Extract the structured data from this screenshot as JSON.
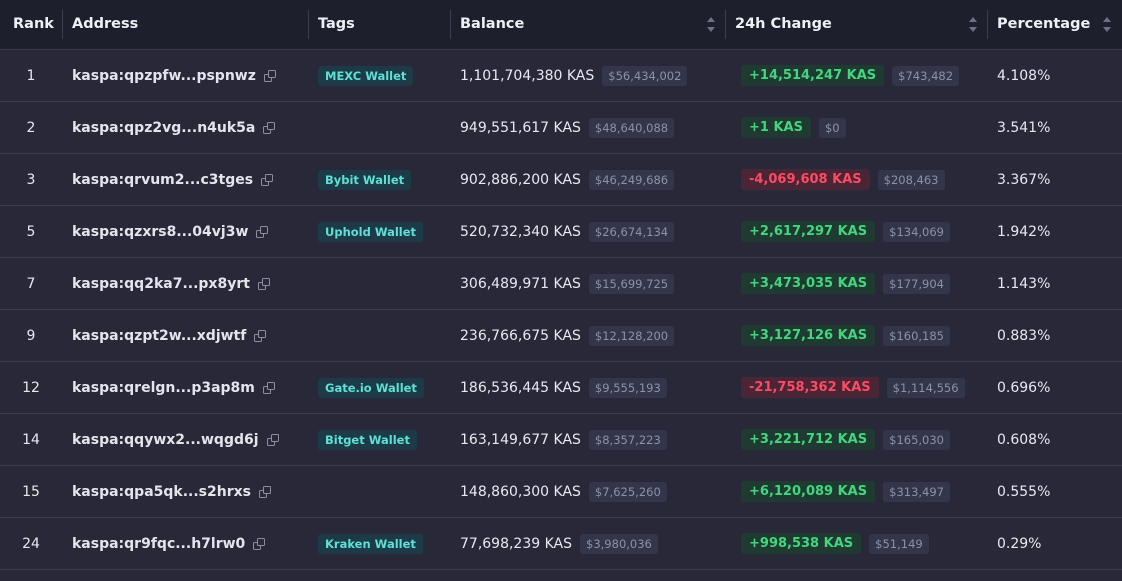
{
  "headers": {
    "rank": "Rank",
    "address": "Address",
    "tags": "Tags",
    "balance": "Balance",
    "change": "24h Change",
    "percentage": "Percentage"
  },
  "rows": [
    {
      "rank": "1",
      "address": "kaspa:qpzpfw...pspnwz",
      "tag": "MEXC Wallet",
      "balance": "1,101,704,380 KAS",
      "balance_usd": "$56,434,002",
      "change": "+14,514,247 KAS",
      "change_usd": "$743,482",
      "direction": "up",
      "percentage": "4.108%"
    },
    {
      "rank": "2",
      "address": "kaspa:qpz2vg...n4uk5a",
      "tag": "",
      "balance": "949,551,617 KAS",
      "balance_usd": "$48,640,088",
      "change": "+1 KAS",
      "change_usd": "$0",
      "direction": "up",
      "percentage": "3.541%"
    },
    {
      "rank": "3",
      "address": "kaspa:qrvum2...c3tges",
      "tag": "Bybit Wallet",
      "balance": "902,886,200 KAS",
      "balance_usd": "$46,249,686",
      "change": "-4,069,608 KAS",
      "change_usd": "$208,463",
      "direction": "down",
      "percentage": "3.367%"
    },
    {
      "rank": "5",
      "address": "kaspa:qzxrs8...04vj3w",
      "tag": "Uphold Wallet",
      "balance": "520,732,340 KAS",
      "balance_usd": "$26,674,134",
      "change": "+2,617,297 KAS",
      "change_usd": "$134,069",
      "direction": "up",
      "percentage": "1.942%"
    },
    {
      "rank": "7",
      "address": "kaspa:qq2ka7...px8yrt",
      "tag": "",
      "balance": "306,489,971 KAS",
      "balance_usd": "$15,699,725",
      "change": "+3,473,035 KAS",
      "change_usd": "$177,904",
      "direction": "up",
      "percentage": "1.143%"
    },
    {
      "rank": "9",
      "address": "kaspa:qzpt2w...xdjwtf",
      "tag": "",
      "balance": "236,766,675 KAS",
      "balance_usd": "$12,128,200",
      "change": "+3,127,126 KAS",
      "change_usd": "$160,185",
      "direction": "up",
      "percentage": "0.883%"
    },
    {
      "rank": "12",
      "address": "kaspa:qrelgn...p3ap8m",
      "tag": "Gate.io Wallet",
      "balance": "186,536,445 KAS",
      "balance_usd": "$9,555,193",
      "change": "-21,758,362 KAS",
      "change_usd": "$1,114,556",
      "direction": "down",
      "percentage": "0.696%"
    },
    {
      "rank": "14",
      "address": "kaspa:qqywx2...wqgd6j",
      "tag": "Bitget Wallet",
      "balance": "163,149,677 KAS",
      "balance_usd": "$8,357,223",
      "change": "+3,221,712 KAS",
      "change_usd": "$165,030",
      "direction": "up",
      "percentage": "0.608%"
    },
    {
      "rank": "15",
      "address": "kaspa:qpa5qk...s2hrxs",
      "tag": "",
      "balance": "148,860,300 KAS",
      "balance_usd": "$7,625,260",
      "change": "+6,120,089 KAS",
      "change_usd": "$313,497",
      "direction": "up",
      "percentage": "0.555%"
    },
    {
      "rank": "24",
      "address": "kaspa:qr9fqc...h7lrw0",
      "tag": "Kraken Wallet",
      "balance": "77,698,239 KAS",
      "balance_usd": "$3,980,036",
      "change": "+998,538 KAS",
      "change_usd": "$51,149",
      "direction": "up",
      "percentage": "0.29%"
    }
  ],
  "colors": {
    "positive": "#42d67e",
    "negative": "#ff4a63",
    "tag_text": "#5fe0d4"
  }
}
